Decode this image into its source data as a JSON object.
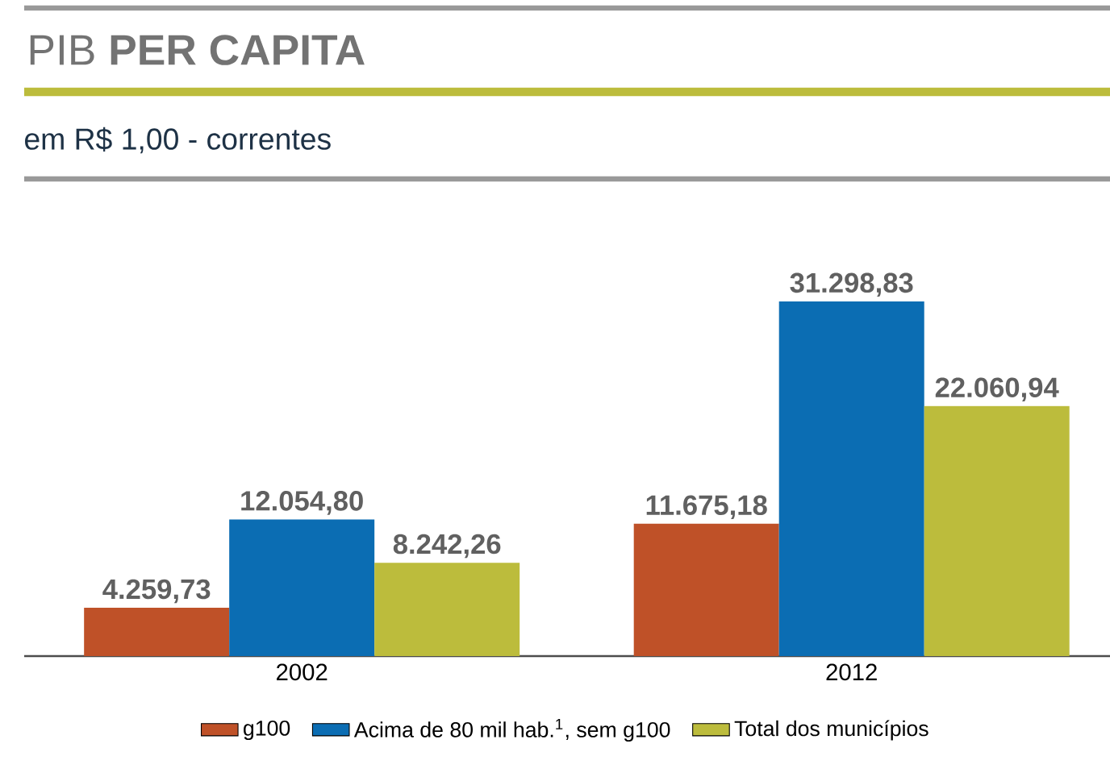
{
  "chart_data": {
    "type": "bar",
    "title": "PIB **PER CAPITA**",
    "subtitle": "em R$ 1,00 - correntes",
    "categories": [
      "2002",
      "2012"
    ],
    "series": [
      {
        "name": "g100",
        "color": "#bf5128",
        "values": [
          4259.73,
          11675.18
        ],
        "value_labels": [
          "4.259,73",
          "11.675,18"
        ]
      },
      {
        "name": "Acima de 80 mil hab.$^{1}$, sem g100",
        "color": "#0b6db3",
        "values": [
          12054.8,
          31298.83
        ],
        "value_labels": [
          "12.054,80",
          "31.298,83"
        ]
      },
      {
        "name": "Total dos municípios",
        "color": "#bcbc3c",
        "values": [
          8242.26,
          22060.94
        ],
        "value_labels": [
          "8.242,26",
          "22.060,94"
        ]
      }
    ],
    "legend": "bottom"
  }
}
